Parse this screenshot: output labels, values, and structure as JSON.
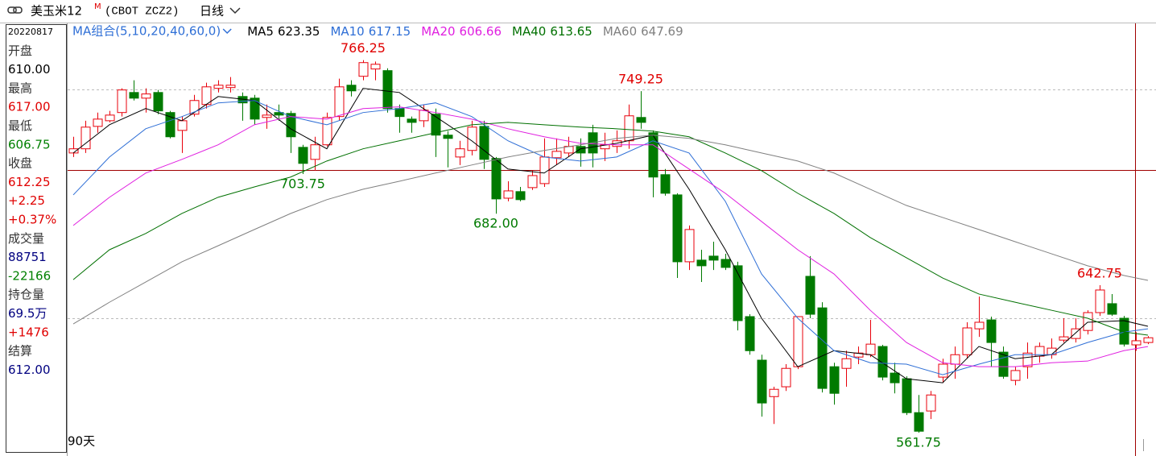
{
  "header": {
    "symbol": "美玉米12",
    "badge": "M",
    "code": "(CBOT ZCZ2)",
    "period": "日线"
  },
  "panel": {
    "rows": [
      {
        "text": "20220817",
        "color": "#000000"
      },
      {
        "text": "开盘",
        "color": "#333333"
      },
      {
        "text": "610.00",
        "color": "#000000"
      },
      {
        "text": "最高",
        "color": "#333333"
      },
      {
        "text": "617.00",
        "color": "#e00000"
      },
      {
        "text": "最低",
        "color": "#333333"
      },
      {
        "text": "606.75",
        "color": "#008000"
      },
      {
        "text": "收盘",
        "color": "#333333"
      },
      {
        "text": "612.25",
        "color": "#e00000"
      },
      {
        "text": "+2.25",
        "color": "#e00000"
      },
      {
        "text": "+0.37%",
        "color": "#e00000"
      },
      {
        "text": "成交量",
        "color": "#333333"
      },
      {
        "text": "88751",
        "color": "#000080"
      },
      {
        "text": "-22166",
        "color": "#008000"
      },
      {
        "text": "持仓量",
        "color": "#333333"
      },
      {
        "text": "69.5万",
        "color": "#000080"
      },
      {
        "text": "+1476",
        "color": "#e00000"
      },
      {
        "text": "结算",
        "color": "#333333"
      },
      {
        "text": "612.00",
        "color": "#000080"
      }
    ]
  },
  "chart_data": {
    "type": "candlestick",
    "ma_group": "MA组合(5,10,20,40,60,0)",
    "days": "90天",
    "up_color": "#e8000b",
    "down_color": "#007a00",
    "ylim": [
      549,
      786
    ],
    "open": [
      715.3,
      717.6,
      729.9,
      733.0,
      737.5,
      748.5,
      745.4,
      748.5,
      737.5,
      727.7,
      736.6,
      741.9,
      750.8,
      751.2,
      746.3,
      745.4,
      734.8,
      737.5,
      737.0,
      718.4,
      711.8,
      719.8,
      735.3,
      752.5,
      757.4,
      761.4,
      760.5,
      739.7,
      733.9,
      733.0,
      736.6,
      725.1,
      713.1,
      716.7,
      729.9,
      712.3,
      690.5,
      694.1,
      696.3,
      698.5,
      712.7,
      715.3,
      718.9,
      726.4,
      717.6,
      718.9,
      722.0,
      734.8,
      726.4,
      703.4,
      692.3,
      655.6,
      656.5,
      658.7,
      656.9,
      653.4,
      625.5,
      601.6,
      581.6,
      587.0,
      598.0,
      647.6,
      630.3,
      598.0,
      597.1,
      603.3,
      604.6,
      609.1,
      594.5,
      591.4,
      572.8,
      573.7,
      592.3,
      599.4,
      604.6,
      618.8,
      623.7,
      606.0,
      590.5,
      598.0,
      603.8,
      604.6,
      612.6,
      613.5,
      617.9,
      627.7,
      632.6,
      624.6,
      610,
      611.3
    ],
    "high": [
      724.2,
      733.0,
      737.5,
      738.4,
      750.8,
      755.2,
      750.8,
      749.9,
      738.4,
      735.3,
      747.2,
      753.9,
      755.2,
      757.0,
      748.5,
      747.2,
      741.9,
      741.9,
      738.4,
      719.8,
      724.2,
      737.5,
      756.1,
      755.2,
      766.25,
      765.5,
      761.8,
      741.9,
      735.3,
      741.9,
      739.7,
      727.3,
      722.0,
      733.0,
      733.0,
      713.1,
      699.8,
      696.7,
      705.6,
      723.3,
      723.3,
      724.2,
      723.3,
      730.8,
      726.4,
      727.7,
      741.9,
      749.25,
      727.7,
      706.5,
      693.2,
      675.5,
      662.2,
      666.6,
      660.0,
      655.6,
      626.8,
      604.6,
      587.0,
      599.4,
      625.5,
      658.7,
      633.4,
      600.2,
      606.8,
      609.1,
      623.7,
      610.0,
      600.2,
      592.7,
      582.5,
      584.7,
      602.4,
      609.1,
      622.4,
      636.5,
      625.5,
      609.1,
      598.0,
      611.3,
      611.3,
      613.5,
      624.6,
      624.6,
      629.0,
      642.75,
      637.9,
      625.9,
      617,
      614.8
    ],
    "low": [
      713.1,
      715.3,
      726.4,
      732.1,
      735.3,
      744.1,
      737.5,
      736.6,
      723.3,
      715.3,
      735.3,
      739.7,
      748.5,
      748.5,
      733.0,
      730.8,
      728.6,
      733.0,
      715.3,
      703.75,
      705.6,
      718.9,
      733.0,
      746.3,
      755.2,
      755.2,
      737.5,
      726.4,
      726.4,
      729.5,
      713.1,
      707.4,
      708.7,
      714.0,
      706.5,
      682.0,
      688.8,
      688.8,
      695.0,
      696.7,
      708.7,
      713.1,
      707.8,
      707.4,
      710.9,
      715.3,
      717.6,
      728.6,
      691.0,
      691.9,
      646.7,
      651.1,
      644.5,
      651.1,
      651.1,
      617.9,
      604.6,
      570.6,
      566.6,
      584.7,
      596.7,
      624.6,
      583.9,
      577.2,
      587.0,
      599.4,
      603.3,
      590.5,
      583.4,
      571.5,
      561.75,
      569.3,
      589.2,
      591.4,
      602.4,
      614.4,
      598.0,
      591.4,
      587.8,
      591.4,
      600.2,
      602.4,
      611.3,
      611.3,
      615.7,
      625.9,
      625.9,
      609.1,
      606.75,
      610.4
    ],
    "close": [
      717.6,
      729.5,
      733.9,
      736.1,
      749.9,
      745.4,
      747.7,
      738.4,
      724.2,
      733.0,
      744.1,
      751.6,
      752.5,
      752.5,
      742.8,
      733.9,
      736.1,
      736.1,
      724.2,
      709.6,
      719.8,
      734.8,
      751.6,
      749.4,
      764.9,
      764.0,
      739.7,
      735.3,
      732.1,
      738.8,
      725.1,
      723.3,
      717.6,
      729.5,
      711.8,
      690.1,
      694.5,
      689.7,
      702.9,
      713.1,
      716.2,
      718.9,
      715.3,
      715.3,
      719.8,
      722.0,
      735.7,
      732.1,
      702.1,
      693.2,
      655.6,
      673.3,
      653.4,
      656.5,
      652.5,
      623.3,
      606.8,
      578.1,
      585.6,
      597.1,
      625.5,
      626.8,
      586.1,
      583.4,
      602.4,
      605.5,
      610.4,
      592.3,
      589.2,
      572.8,
      562.6,
      582.5,
      599.4,
      604.6,
      619.3,
      622.4,
      611.3,
      592.7,
      595.9,
      605.5,
      609.1,
      608.2,
      614.4,
      618.8,
      627.7,
      640.1,
      626.8,
      610.4,
      612.25,
      613.9
    ],
    "ma_x": [
      0,
      3,
      6,
      9,
      12,
      15,
      18,
      21,
      24,
      27,
      30,
      33,
      36,
      39,
      42,
      45,
      48,
      51,
      54,
      57,
      60,
      63,
      66,
      69,
      72,
      75,
      78,
      81,
      84,
      87,
      89
    ],
    "series": [
      {
        "name": "MA5",
        "current": "623.35",
        "color": "#000000",
        "values": [
          715.3,
          730.8,
          739.7,
          733.0,
          746.3,
          744.1,
          728.6,
          717.6,
          750.8,
          748.5,
          735.3,
          722.0,
          706.5,
          704.3,
          717.6,
          720.6,
          725.1,
          695.4,
          662.2,
          624.6,
          598.0,
          606.8,
          604.6,
          591.4,
          589.2,
          609.1,
          602.4,
          604.6,
          622.4,
          623.3,
          620.2
        ]
      },
      {
        "name": "MA10",
        "current": "617.15",
        "color": "#2f6fd6",
        "values": [
          692.3,
          713.1,
          728.6,
          735.3,
          742.8,
          744.1,
          735.3,
          730.8,
          737.5,
          739.7,
          742.8,
          735.3,
          722.0,
          713.1,
          710.9,
          713.1,
          722.0,
          715.3,
          688.8,
          648.9,
          624.6,
          606.8,
          600.2,
          599.4,
          593.6,
          599.4,
          604.6,
          604.6,
          611.3,
          617.0,
          618.8
        ]
      },
      {
        "name": "MA20",
        "current": "606.66",
        "color": "#e020e0",
        "values": [
          675.5,
          691.0,
          704.3,
          711.8,
          719.8,
          730.8,
          735.3,
          733.9,
          739.7,
          740.6,
          737.5,
          733.9,
          728.6,
          724.2,
          720.6,
          719.8,
          719.8,
          706.5,
          693.2,
          677.7,
          662.2,
          648.9,
          629.0,
          611.3,
          600.2,
          598.0,
          598.0,
          600.2,
          601.1,
          606.8,
          609.1
        ]
      },
      {
        "name": "MA40",
        "current": "613.65",
        "color": "#007000",
        "values": [
          645.8,
          662.2,
          671.1,
          682.1,
          691.0,
          696.7,
          702.1,
          710.9,
          717.6,
          722.0,
          726.4,
          730.8,
          732.1,
          730.8,
          729.5,
          728.6,
          727.3,
          724.2,
          715.3,
          705.6,
          693.2,
          682.1,
          668.9,
          657.8,
          646.7,
          637.9,
          633.4,
          629.0,
          624.6,
          617.1,
          615.3
        ]
      },
      {
        "name": "MA60",
        "current": "647.69",
        "color": "#808080",
        "values": [
          621.5,
          633.4,
          644.5,
          655.6,
          664.4,
          673.3,
          682.1,
          689.7,
          695.4,
          699.8,
          704.3,
          708.7,
          713.1,
          716.7,
          719.8,
          723.3,
          725.1,
          723.3,
          719.8,
          715.3,
          710.9,
          704.3,
          695.4,
          686.5,
          679.9,
          673.3,
          666.6,
          660.0,
          653.4,
          648.1,
          645.4
        ]
      }
    ],
    "annotations": [
      {
        "x": 24,
        "value": 766.25,
        "label": "766.25",
        "kind": "high",
        "color": "#e00000"
      },
      {
        "x": 47,
        "value": 749.25,
        "label": "749.25",
        "kind": "high",
        "color": "#e00000"
      },
      {
        "x": 19,
        "value": 703.75,
        "label": "703.75",
        "kind": "low",
        "color": "#007a00"
      },
      {
        "x": 35,
        "value": 682.0,
        "label": "682.00",
        "kind": "low",
        "color": "#007a00"
      },
      {
        "x": 85,
        "value": 642.75,
        "label": "642.75",
        "kind": "high",
        "color": "#e00000"
      },
      {
        "x": 70,
        "value": 561.75,
        "label": "561.75",
        "kind": "low",
        "color": "#007a00"
      }
    ]
  }
}
